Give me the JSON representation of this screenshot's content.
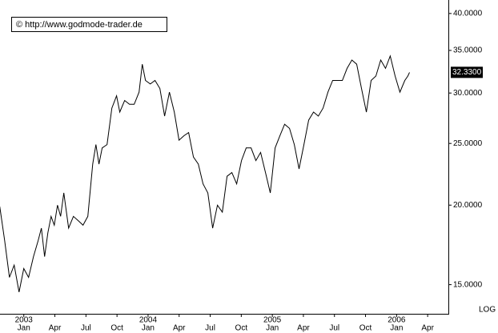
{
  "chart_data": {
    "type": "line",
    "log_y": true,
    "grid": false,
    "watermark": "© http://www.godmode-trader.de",
    "scale_label": "LOG",
    "color": "#000000",
    "xlim": [
      -2.3,
      41
    ],
    "ylim": [
      13.5,
      42
    ],
    "yticks": [
      {
        "value": 15,
        "label": "15.0000"
      },
      {
        "value": 20,
        "label": "20.0000"
      },
      {
        "value": 25,
        "label": "25.0000"
      },
      {
        "value": 30,
        "label": "30.0000"
      },
      {
        "value": 35,
        "label": "35.0000"
      },
      {
        "value": 40,
        "label": "40.0000"
      }
    ],
    "xticks": [
      {
        "value": 0,
        "label": "Jan"
      },
      {
        "value": 3,
        "label": "Apr"
      },
      {
        "value": 6,
        "label": "Jul"
      },
      {
        "value": 9,
        "label": "Oct"
      },
      {
        "value": 12,
        "label": "Jan"
      },
      {
        "value": 15,
        "label": "Apr"
      },
      {
        "value": 18,
        "label": "Jul"
      },
      {
        "value": 21,
        "label": "Oct"
      },
      {
        "value": 24,
        "label": "Jan"
      },
      {
        "value": 27,
        "label": "Apr"
      },
      {
        "value": 30,
        "label": "Jul"
      },
      {
        "value": 33,
        "label": "Oct"
      },
      {
        "value": 36,
        "label": "Jan"
      },
      {
        "value": 39,
        "label": "Apr"
      }
    ],
    "year_labels": [
      {
        "value": 0,
        "label": "2003"
      },
      {
        "value": 12,
        "label": "2004"
      },
      {
        "value": 24,
        "label": "2005"
      },
      {
        "value": 36,
        "label": "2006"
      }
    ],
    "current_price": {
      "value": 32.33,
      "label": "32.3300"
    },
    "x": [
      -2.32,
      -1.85,
      -1.39,
      -0.93,
      -0.46,
      0,
      0.46,
      0.93,
      1.39,
      1.7,
      2.01,
      2.32,
      2.63,
      2.94,
      3.25,
      3.55,
      3.86,
      4.33,
      4.79,
      5.26,
      5.72,
      6.18,
      6.65,
      6.96,
      7.26,
      7.57,
      8.04,
      8.5,
      8.96,
      9.27,
      9.74,
      10.2,
      10.66,
      11.13,
      11.44,
      11.75,
      12.21,
      12.67,
      13.14,
      13.6,
      14.06,
      14.53,
      14.99,
      15.46,
      15.92,
      16.38,
      16.85,
      17.31,
      17.77,
      18.24,
      18.7,
      19.17,
      19.63,
      20.09,
      20.56,
      21.02,
      21.48,
      21.95,
      22.41,
      22.87,
      23.34,
      23.8,
      24.27,
      24.73,
      25.19,
      25.66,
      26.12,
      26.58,
      27.05,
      27.51,
      27.98,
      28.44,
      28.9,
      29.37,
      29.83,
      30.29,
      30.76,
      31.22,
      31.68,
      32.15,
      32.61,
      33.08,
      33.54,
      34.0,
      34.47,
      34.93,
      35.39,
      35.86,
      36.32,
      36.79,
      37.09,
      37.25
    ],
    "values": [
      19.9,
      17.6,
      15.4,
      16.1,
      14.6,
      15.9,
      15.4,
      16.6,
      17.6,
      18.4,
      16.6,
      18.1,
      19.2,
      18.6,
      20.0,
      19.2,
      20.9,
      18.4,
      19.2,
      18.9,
      18.6,
      19.2,
      23.2,
      24.9,
      23.2,
      24.6,
      24.9,
      28.4,
      29.7,
      28.0,
      29.2,
      28.8,
      28.8,
      30.1,
      33.3,
      31.4,
      31.0,
      31.4,
      30.5,
      27.6,
      30.1,
      28.0,
      25.3,
      25.7,
      26.0,
      23.8,
      23.2,
      21.6,
      20.9,
      18.4,
      20.0,
      19.5,
      22.2,
      22.5,
      21.6,
      23.5,
      24.6,
      24.6,
      23.5,
      24.2,
      22.5,
      20.9,
      24.6,
      25.7,
      26.8,
      26.4,
      24.9,
      22.8,
      24.9,
      27.2,
      28.0,
      27.6,
      28.4,
      30.1,
      31.4,
      31.4,
      31.4,
      32.8,
      33.8,
      33.3,
      30.5,
      28.0,
      31.4,
      31.9,
      33.8,
      32.8,
      34.3,
      31.9,
      30.1,
      31.4,
      31.9,
      32.33
    ]
  }
}
